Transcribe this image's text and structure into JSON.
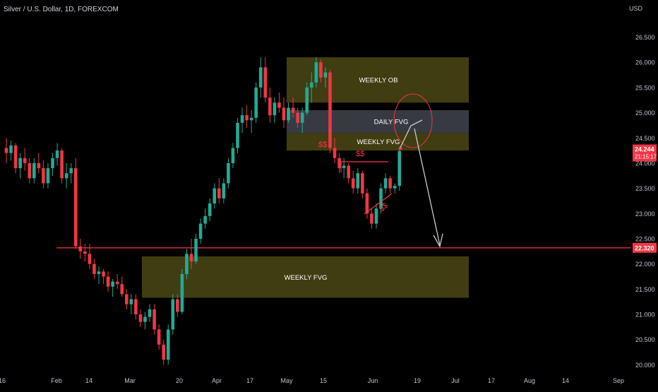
{
  "header": {
    "title": "Silver / U.S. Dollar, 1D, FOREXCOM",
    "currency": "USD"
  },
  "chart_data": {
    "type": "candlestick",
    "yticks": [
      "26.500",
      "26.000",
      "25.500",
      "25.000",
      "24.500",
      "24.000",
      "23.500",
      "23.000",
      "22.500",
      "22.000",
      "21.500",
      "21.000",
      "20.500",
      "20.000"
    ],
    "xticks": [
      "16",
      "Feb",
      "14",
      "Mar",
      "20",
      "Apr",
      "17",
      "May",
      "15",
      "Jun",
      "19",
      "Jul",
      "17",
      "Aug",
      "14",
      "Sep"
    ],
    "ylim": [
      19.95,
      26.9
    ],
    "current_price": {
      "value": "24.244",
      "countdown": "21:15:17"
    },
    "support_line": {
      "value": "22.320",
      "price": 22.32
    },
    "zones": [
      {
        "label": "WEEKLY OB",
        "top": 26.1,
        "bottom": 25.2,
        "kind": "weekly"
      },
      {
        "label": "DAILY FVG",
        "top": 25.05,
        "bottom": 24.6,
        "kind": "daily"
      },
      {
        "label": "WEEKLY FVG",
        "top": 24.6,
        "bottom": 24.25,
        "kind": "weekly"
      },
      {
        "label": "WEEKLY FVG",
        "top": 22.15,
        "bottom": 21.33,
        "kind": "weekly"
      }
    ],
    "annotations": [
      {
        "text": "$$",
        "near": "weekly-fvg-left"
      },
      {
        "text": "$$",
        "near": "equal-highs"
      },
      {
        "text": "$$",
        "near": "rising-lows"
      }
    ],
    "candles": [
      [
        24.3,
        24.5,
        24.0,
        24.2
      ],
      [
        24.2,
        24.45,
        24.05,
        24.35
      ],
      [
        24.35,
        24.4,
        23.8,
        23.9
      ],
      [
        23.9,
        24.2,
        23.7,
        24.1
      ],
      [
        24.1,
        24.3,
        23.85,
        24.0
      ],
      [
        24.0,
        24.1,
        23.6,
        23.7
      ],
      [
        23.7,
        24.1,
        23.6,
        24.0
      ],
      [
        24.0,
        24.2,
        23.8,
        23.9
      ],
      [
        23.9,
        24.05,
        23.5,
        23.6
      ],
      [
        23.6,
        24.0,
        23.5,
        23.9
      ],
      [
        23.9,
        24.2,
        23.75,
        24.1
      ],
      [
        24.1,
        24.4,
        23.95,
        24.25
      ],
      [
        24.25,
        24.3,
        23.6,
        23.7
      ],
      [
        23.7,
        24.0,
        23.5,
        23.8
      ],
      [
        23.8,
        24.0,
        23.6,
        23.9
      ],
      [
        23.9,
        24.1,
        22.3,
        22.35
      ],
      [
        22.35,
        22.5,
        22.1,
        22.25
      ],
      [
        22.25,
        22.4,
        22.05,
        22.2
      ],
      [
        22.2,
        22.4,
        21.9,
        22.0
      ],
      [
        22.0,
        22.1,
        21.7,
        21.8
      ],
      [
        21.8,
        21.95,
        21.6,
        21.85
      ],
      [
        21.85,
        21.9,
        21.6,
        21.75
      ],
      [
        21.75,
        21.85,
        21.45,
        21.55
      ],
      [
        21.55,
        21.7,
        21.35,
        21.65
      ],
      [
        21.65,
        21.8,
        21.5,
        21.6
      ],
      [
        21.6,
        21.75,
        21.35,
        21.4
      ],
      [
        21.4,
        21.5,
        21.1,
        21.2
      ],
      [
        21.2,
        21.4,
        21.0,
        21.3
      ],
      [
        21.3,
        21.4,
        20.9,
        21.0
      ],
      [
        21.0,
        21.1,
        20.75,
        20.85
      ],
      [
        20.85,
        21.05,
        20.7,
        20.95
      ],
      [
        20.95,
        21.2,
        20.85,
        21.1
      ],
      [
        21.1,
        21.2,
        20.6,
        20.7
      ],
      [
        20.7,
        20.8,
        20.3,
        20.4
      ],
      [
        20.4,
        20.5,
        20.0,
        20.1
      ],
      [
        20.1,
        20.8,
        20.0,
        20.7
      ],
      [
        20.7,
        21.4,
        20.6,
        21.3
      ],
      [
        21.3,
        21.4,
        20.95,
        21.05
      ],
      [
        21.05,
        21.9,
        21.0,
        21.8
      ],
      [
        21.8,
        22.3,
        21.7,
        22.2
      ],
      [
        22.2,
        22.5,
        21.9,
        22.05
      ],
      [
        22.05,
        22.6,
        22.0,
        22.5
      ],
      [
        22.5,
        22.9,
        22.4,
        22.8
      ],
      [
        22.8,
        23.1,
        22.7,
        22.95
      ],
      [
        22.95,
        23.3,
        22.85,
        23.2
      ],
      [
        23.2,
        23.6,
        23.1,
        23.5
      ],
      [
        23.5,
        23.7,
        23.2,
        23.3
      ],
      [
        23.3,
        23.7,
        23.2,
        23.6
      ],
      [
        23.6,
        24.1,
        23.5,
        24.0
      ],
      [
        24.0,
        24.4,
        23.9,
        24.3
      ],
      [
        24.3,
        24.9,
        24.2,
        24.8
      ],
      [
        24.8,
        25.1,
        24.6,
        24.95
      ],
      [
        24.95,
        25.15,
        24.7,
        24.85
      ],
      [
        24.85,
        25.05,
        24.6,
        24.9
      ],
      [
        24.9,
        25.6,
        24.8,
        25.5
      ],
      [
        25.5,
        26.1,
        25.3,
        25.9
      ],
      [
        25.9,
        26.1,
        25.2,
        25.3
      ],
      [
        25.3,
        25.5,
        24.8,
        24.95
      ],
      [
        24.95,
        25.3,
        24.8,
        25.2
      ],
      [
        25.2,
        25.4,
        25.0,
        25.1
      ],
      [
        25.1,
        25.3,
        24.7,
        24.85
      ],
      [
        24.85,
        25.2,
        24.8,
        25.1
      ],
      [
        25.1,
        25.3,
        24.9,
        25.0
      ],
      [
        25.0,
        25.1,
        24.7,
        24.8
      ],
      [
        24.8,
        25.1,
        24.6,
        25.0
      ],
      [
        25.0,
        25.6,
        24.95,
        25.5
      ],
      [
        25.5,
        25.8,
        25.2,
        25.6
      ],
      [
        25.6,
        26.1,
        25.5,
        26.0
      ],
      [
        26.0,
        26.05,
        25.6,
        25.7
      ],
      [
        25.7,
        25.9,
        25.5,
        25.8
      ],
      [
        25.8,
        25.85,
        24.2,
        24.3
      ],
      [
        24.3,
        24.5,
        24.0,
        24.1
      ],
      [
        24.1,
        24.2,
        23.8,
        23.9
      ],
      [
        23.9,
        24.1,
        23.7,
        23.95
      ],
      [
        23.95,
        24.0,
        23.6,
        23.7
      ],
      [
        23.7,
        23.85,
        23.4,
        23.5
      ],
      [
        23.5,
        23.9,
        23.4,
        23.8
      ],
      [
        23.8,
        23.85,
        23.3,
        23.4
      ],
      [
        23.4,
        23.5,
        22.9,
        23.0
      ],
      [
        23.0,
        23.1,
        22.7,
        22.8
      ],
      [
        22.8,
        23.2,
        22.7,
        23.1
      ],
      [
        23.1,
        23.6,
        23.0,
        23.5
      ],
      [
        23.5,
        23.8,
        23.4,
        23.7
      ],
      [
        23.7,
        23.75,
        23.4,
        23.5
      ],
      [
        23.5,
        23.6,
        23.4,
        23.55
      ],
      [
        23.55,
        24.3,
        23.45,
        24.24
      ]
    ]
  }
}
